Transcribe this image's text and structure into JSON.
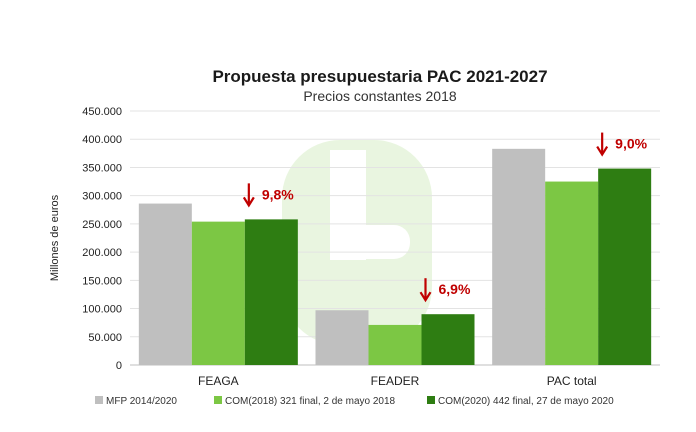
{
  "chart_data": {
    "type": "bar",
    "title": "Propuesta presupuestaria PAC 2021-2027",
    "subtitle": "Precios constantes 2018",
    "ylabel": "Millones de euros",
    "ylim": [
      0,
      450000
    ],
    "yticks": [
      "0",
      "50.000",
      "100.000",
      "150.000",
      "200.000",
      "250.000",
      "300.000",
      "350.000",
      "400.000",
      "450.000"
    ],
    "categories": [
      "FEAGA",
      "FEADER",
      "PAC total"
    ],
    "series": [
      {
        "name": "MFP 2014/2020",
        "values": [
          286000,
          97000,
          383000
        ],
        "color": "#bfbfbf"
      },
      {
        "name": "COM(2018) 321 final, 2 de mayo 2018",
        "values": [
          254000,
          71000,
          325000
        ],
        "color": "#7cc744"
      },
      {
        "name": "COM(2020) 442 final, 27 de mayo 2020",
        "values": [
          258000,
          90000,
          348000
        ],
        "color": "#2e7d12"
      }
    ],
    "annotations": [
      {
        "category": "FEAGA",
        "text": "9,8%"
      },
      {
        "category": "FEADER",
        "text": "6,9%"
      },
      {
        "category": "PAC total",
        "text": "9,0%"
      }
    ],
    "annotation_color": "#c00000",
    "grid": true,
    "legend_position": "bottom"
  }
}
